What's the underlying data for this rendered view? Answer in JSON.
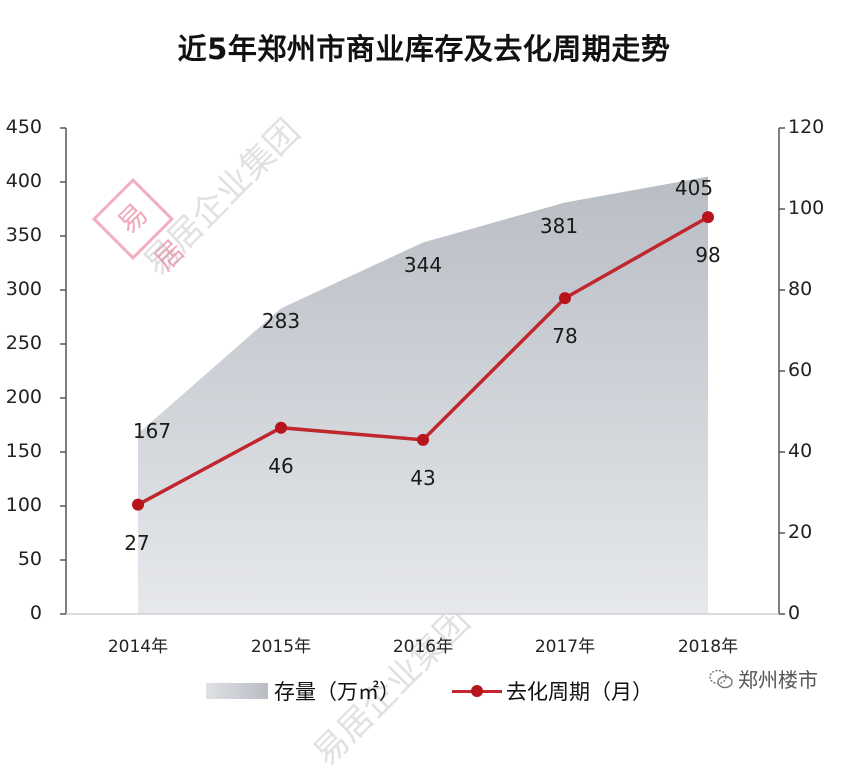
{
  "title": "近5年郑州市商业库存及去化周期走势",
  "left_axis": {
    "ticks": [
      "450",
      "400",
      "350",
      "300",
      "250",
      "200",
      "150",
      "100",
      "50",
      "0"
    ]
  },
  "right_axis": {
    "ticks": [
      "120",
      "100",
      "80",
      "60",
      "40",
      "20",
      "0"
    ]
  },
  "x_axis": {
    "ticks": [
      "2014年",
      "2015年",
      "2016年",
      "2017年",
      "2018年"
    ]
  },
  "legend": {
    "area_label": "存量（万㎡）",
    "line_label": "去化周期（月）"
  },
  "brand": {
    "icon": "wechat-icon",
    "label": "郑州楼市"
  },
  "watermark": {
    "text": "易居企业集团",
    "stamp": "易居"
  },
  "colors": {
    "area_top": "#b9bdc4",
    "area_bottom": "#e6e8ec",
    "line": "#c0262d",
    "marker": "#b8141c",
    "axis": "#555555"
  },
  "chart_data": {
    "type": "area+line",
    "title": "近5年郑州市商业库存及去化周期走势",
    "categories": [
      "2014年",
      "2015年",
      "2016年",
      "2017年",
      "2018年"
    ],
    "series": [
      {
        "name": "存量（万㎡）",
        "type": "area",
        "axis": "left",
        "values": [
          167,
          283,
          344,
          381,
          405
        ]
      },
      {
        "name": "去化周期（月）",
        "type": "line",
        "axis": "right",
        "values": [
          27,
          46,
          43,
          78,
          98
        ]
      }
    ],
    "ylim_left": [
      0,
      450
    ],
    "ylim_right": [
      0,
      120
    ],
    "yticks_left": [
      0,
      50,
      100,
      150,
      200,
      250,
      300,
      350,
      400,
      450
    ],
    "yticks_right": [
      0,
      20,
      40,
      60,
      80,
      100,
      120
    ],
    "grid": false,
    "legend_position": "bottom"
  }
}
